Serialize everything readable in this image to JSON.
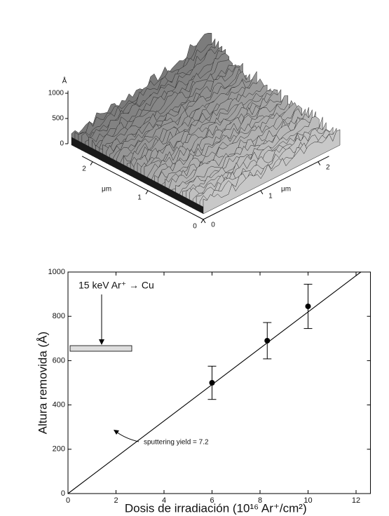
{
  "chart_data": [
    {
      "type": "surface",
      "zlabel": "Å",
      "zticks": [
        0,
        500,
        1000
      ],
      "xlabel": "μm",
      "xticks": [
        0,
        1,
        2
      ],
      "ylabel": "μm",
      "yticks": [
        0,
        1,
        2
      ]
    },
    {
      "type": "scatter",
      "xlabel": "Dosis de irradiación (10¹⁶ Ar⁺/cm²)",
      "ylabel": "Altura removida (Å)",
      "xlim": [
        0,
        12.6
      ],
      "ylim": [
        0,
        1000
      ],
      "xticks": [
        0,
        2,
        4,
        6,
        8,
        10,
        12
      ],
      "yticks": [
        0,
        200,
        400,
        600,
        800,
        1000
      ],
      "series": [
        {
          "color": "#000000",
          "x": [
            6,
            8.3,
            10
          ],
          "y": [
            500,
            690,
            845
          ],
          "err": [
            75,
            82,
            100
          ]
        }
      ],
      "fit": {
        "x": [
          0,
          12.2
        ],
        "y": [
          0,
          1000
        ]
      },
      "annotations": [
        "15 keV Ar⁺ → Cu",
        "sputtering yield = 7.2"
      ]
    }
  ]
}
